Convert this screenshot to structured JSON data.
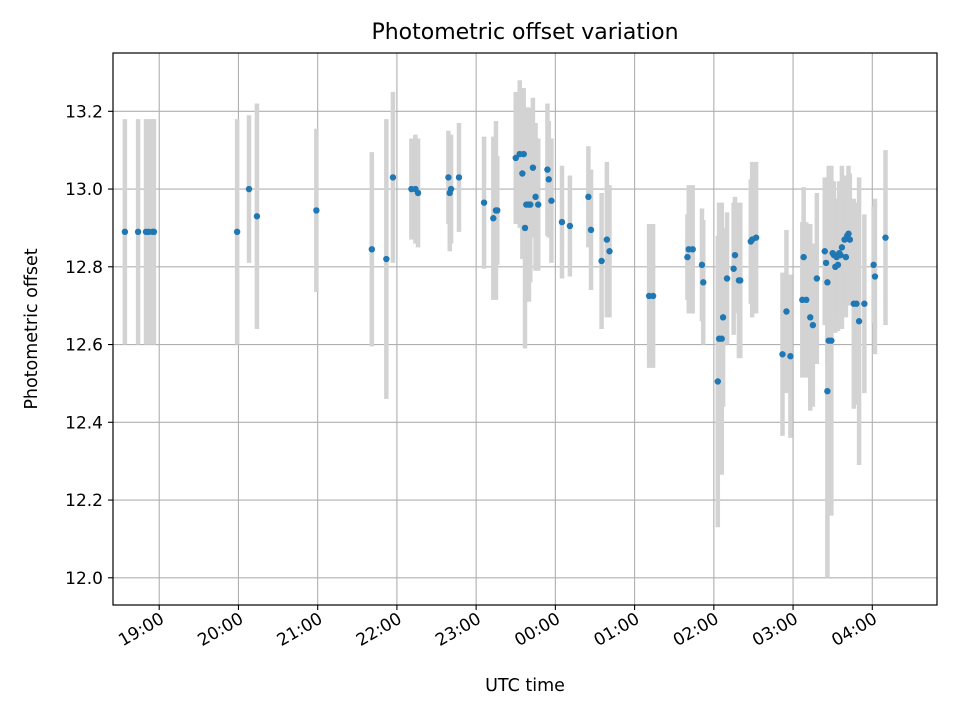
{
  "chart_data": {
    "type": "scatter",
    "title": "Photometric offset variation",
    "xlabel": "UTC time",
    "ylabel": "Photometric offset",
    "xlim": [
      "18:25",
      "04:49"
    ],
    "ylim": [
      11.93,
      13.35
    ],
    "grid": true,
    "x_ticks": [
      "19:00",
      "20:00",
      "21:00",
      "22:00",
      "23:00",
      "00:00",
      "01:00",
      "02:00",
      "03:00",
      "04:00"
    ],
    "y_ticks": [
      "12.0",
      "12.2",
      "12.4",
      "12.6",
      "12.8",
      "13.0",
      "13.2"
    ],
    "colors": {
      "points": "#1f77b4",
      "error_bars": "#d3d3d3",
      "grid": "#b0b0b0"
    },
    "points": [
      {
        "x": "18:34",
        "y": 12.89,
        "err": 0.29
      },
      {
        "x": "18:44",
        "y": 12.89,
        "err": 0.29
      },
      {
        "x": "18:50",
        "y": 12.89,
        "err": 0.29
      },
      {
        "x": "18:52",
        "y": 12.89,
        "err": 0.29
      },
      {
        "x": "18:55",
        "y": 12.89,
        "err": 0.29
      },
      {
        "x": "18:56",
        "y": 12.89,
        "err": 0.29
      },
      {
        "x": "19:59",
        "y": 12.89,
        "err": 0.29
      },
      {
        "x": "20:08",
        "y": 13.0,
        "err": 0.19
      },
      {
        "x": "20:14",
        "y": 12.93,
        "err": 0.29
      },
      {
        "x": "20:59",
        "y": 12.945,
        "err": 0.21
      },
      {
        "x": "21:41",
        "y": 12.845,
        "err": 0.25
      },
      {
        "x": "21:52",
        "y": 12.82,
        "err": 0.36
      },
      {
        "x": "21:57",
        "y": 13.03,
        "err": 0.22
      },
      {
        "x": "22:11",
        "y": 13.0,
        "err": 0.13
      },
      {
        "x": "22:14",
        "y": 13.0,
        "err": 0.14
      },
      {
        "x": "22:16",
        "y": 12.99,
        "err": 0.14
      },
      {
        "x": "22:39",
        "y": 13.03,
        "err": 0.12
      },
      {
        "x": "22:40",
        "y": 12.99,
        "err": 0.15
      },
      {
        "x": "22:41",
        "y": 13.0,
        "err": 0.14
      },
      {
        "x": "22:47",
        "y": 13.03,
        "err": 0.14
      },
      {
        "x": "23:06",
        "y": 12.965,
        "err": 0.17
      },
      {
        "x": "23:13",
        "y": 12.925,
        "err": 0.21
      },
      {
        "x": "23:15",
        "y": 12.945,
        "err": 0.23
      },
      {
        "x": "23:16",
        "y": 12.945,
        "err": 0.14
      },
      {
        "x": "23:30",
        "y": 13.08,
        "err": 0.17
      },
      {
        "x": "23:33",
        "y": 13.09,
        "err": 0.19
      },
      {
        "x": "23:35",
        "y": 13.04,
        "err": 0.22
      },
      {
        "x": "23:36",
        "y": 13.09,
        "err": 0.17
      },
      {
        "x": "23:37",
        "y": 12.9,
        "err": 0.31
      },
      {
        "x": "23:38",
        "y": 12.96,
        "err": 0.24
      },
      {
        "x": "23:40",
        "y": 12.96,
        "err": 0.25
      },
      {
        "x": "23:41",
        "y": 12.96,
        "err": 0.2
      },
      {
        "x": "23:43",
        "y": 13.055,
        "err": 0.18
      },
      {
        "x": "23:45",
        "y": 12.98,
        "err": 0.19
      },
      {
        "x": "23:47",
        "y": 12.96,
        "err": 0.17
      },
      {
        "x": "23:54",
        "y": 13.05,
        "err": 0.17
      },
      {
        "x": "23:55",
        "y": 13.025,
        "err": 0.15
      },
      {
        "x": "23:57",
        "y": 12.97,
        "err": 0.16
      },
      {
        "x": "00:05",
        "y": 12.915,
        "err": 0.145
      },
      {
        "x": "00:11",
        "y": 12.905,
        "err": 0.13
      },
      {
        "x": "00:25",
        "y": 12.98,
        "err": 0.13
      },
      {
        "x": "00:27",
        "y": 12.895,
        "err": 0.155
      },
      {
        "x": "00:35",
        "y": 12.815,
        "err": 0.175
      },
      {
        "x": "00:39",
        "y": 12.87,
        "err": 0.2
      },
      {
        "x": "00:41",
        "y": 12.84,
        "err": 0.17
      },
      {
        "x": "01:11",
        "y": 12.725,
        "err": 0.185
      },
      {
        "x": "01:14",
        "y": 12.725,
        "err": 0.185
      },
      {
        "x": "01:40",
        "y": 12.825,
        "err": 0.11
      },
      {
        "x": "01:41",
        "y": 12.845,
        "err": 0.165
      },
      {
        "x": "01:44",
        "y": 12.845,
        "err": 0.165
      },
      {
        "x": "01:51",
        "y": 12.805,
        "err": 0.145
      },
      {
        "x": "01:52",
        "y": 12.76,
        "err": 0.16
      },
      {
        "x": "02:03",
        "y": 12.505,
        "err": 0.375
      },
      {
        "x": "02:04",
        "y": 12.615,
        "err": 0.35
      },
      {
        "x": "02:06",
        "y": 12.615,
        "err": 0.35
      },
      {
        "x": "02:07",
        "y": 12.67,
        "err": 0.23
      },
      {
        "x": "02:10",
        "y": 12.77,
        "err": 0.17
      },
      {
        "x": "02:15",
        "y": 12.795,
        "err": 0.17
      },
      {
        "x": "02:16",
        "y": 12.83,
        "err": 0.15
      },
      {
        "x": "02:19",
        "y": 12.765,
        "err": 0.2
      },
      {
        "x": "02:20",
        "y": 12.765,
        "err": 0.2
      },
      {
        "x": "02:28",
        "y": 12.865,
        "err": 0.16
      },
      {
        "x": "02:29",
        "y": 12.87,
        "err": 0.2
      },
      {
        "x": "02:32",
        "y": 12.875,
        "err": 0.195
      },
      {
        "x": "02:52",
        "y": 12.575,
        "err": 0.21
      },
      {
        "x": "02:55",
        "y": 12.685,
        "err": 0.21
      },
      {
        "x": "02:58",
        "y": 12.57,
        "err": 0.21
      },
      {
        "x": "03:07",
        "y": 12.715,
        "err": 0.2
      },
      {
        "x": "03:08",
        "y": 12.825,
        "err": 0.18
      },
      {
        "x": "03:10",
        "y": 12.715,
        "err": 0.2
      },
      {
        "x": "03:13",
        "y": 12.67,
        "err": 0.24
      },
      {
        "x": "03:15",
        "y": 12.65,
        "err": 0.21
      },
      {
        "x": "03:18",
        "y": 12.77,
        "err": 0.22
      },
      {
        "x": "03:24",
        "y": 12.84,
        "err": 0.19
      },
      {
        "x": "03:25",
        "y": 12.81,
        "err": 0.15
      },
      {
        "x": "03:26",
        "y": 12.76,
        "err": 0.21
      },
      {
        "x": "03:26",
        "y": 12.48,
        "err": 0.48
      },
      {
        "x": "03:27",
        "y": 12.61,
        "err": 0.45
      },
      {
        "x": "03:29",
        "y": 12.61,
        "err": 0.45
      },
      {
        "x": "03:30",
        "y": 12.835,
        "err": 0.18
      },
      {
        "x": "03:31",
        "y": 12.83,
        "err": 0.19
      },
      {
        "x": "03:32",
        "y": 12.8,
        "err": 0.17
      },
      {
        "x": "03:33",
        "y": 12.825,
        "err": 0.15
      },
      {
        "x": "03:34",
        "y": 12.805,
        "err": 0.17
      },
      {
        "x": "03:35",
        "y": 12.835,
        "err": 0.185
      },
      {
        "x": "03:36",
        "y": 12.83,
        "err": 0.155
      },
      {
        "x": "03:37",
        "y": 12.85,
        "err": 0.21
      },
      {
        "x": "03:39",
        "y": 12.87,
        "err": 0.165
      },
      {
        "x": "03:40",
        "y": 12.825,
        "err": 0.155
      },
      {
        "x": "03:41",
        "y": 12.88,
        "err": 0.155
      },
      {
        "x": "03:42",
        "y": 12.885,
        "err": 0.175
      },
      {
        "x": "03:43",
        "y": 12.87,
        "err": 0.17
      },
      {
        "x": "03:46",
        "y": 12.705,
        "err": 0.27
      },
      {
        "x": "03:48",
        "y": 12.705,
        "err": 0.26
      },
      {
        "x": "03:50",
        "y": 12.66,
        "err": 0.37
      },
      {
        "x": "03:54",
        "y": 12.705,
        "err": 0.23
      },
      {
        "x": "04:01",
        "y": 12.805,
        "err": 0.15
      },
      {
        "x": "04:02",
        "y": 12.775,
        "err": 0.2
      },
      {
        "x": "04:10",
        "y": 12.875,
        "err": 0.225
      }
    ]
  }
}
